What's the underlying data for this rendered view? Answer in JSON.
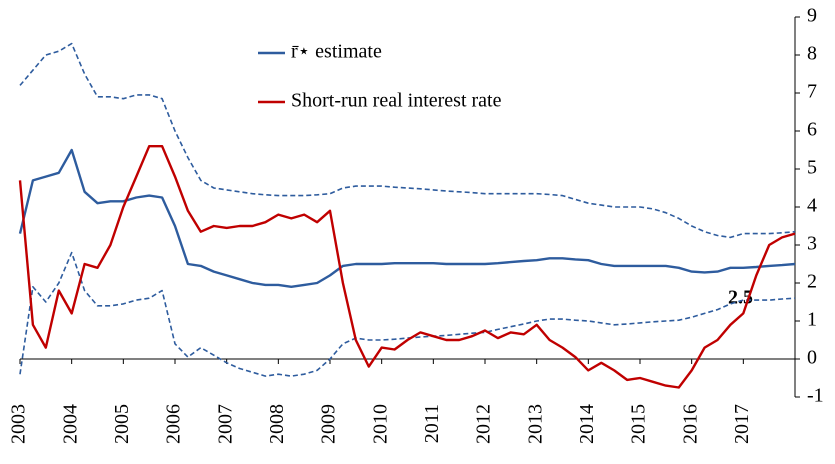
{
  "chart_data": {
    "type": "line",
    "annotations": [
      {
        "text": "2.5"
      }
    ],
    "x": [
      2003,
      2003.25,
      2003.5,
      2003.75,
      2004,
      2004.25,
      2004.5,
      2004.75,
      2005,
      2005.25,
      2005.5,
      2005.75,
      2006,
      2006.25,
      2006.5,
      2006.75,
      2007,
      2007.25,
      2007.5,
      2007.75,
      2008,
      2008.25,
      2008.5,
      2008.75,
      2009,
      2009.25,
      2009.5,
      2009.75,
      2010,
      2010.25,
      2010.5,
      2010.75,
      2011,
      2011.25,
      2011.5,
      2011.75,
      2012,
      2012.25,
      2012.5,
      2012.75,
      2013,
      2013.25,
      2013.5,
      2013.75,
      2014,
      2014.25,
      2014.5,
      2014.75,
      2015,
      2015.25,
      2015.5,
      2015.75,
      2016,
      2016.25,
      2016.5,
      2016.75,
      2017,
      2017.25,
      2017.5,
      2017.75,
      2018
    ],
    "series": [
      {
        "name": "r̄⋆ estimate",
        "color": "#2e5c9e",
        "dashed": false,
        "values": [
          3.3,
          4.7,
          4.8,
          4.9,
          5.5,
          4.4,
          4.1,
          4.15,
          4.15,
          4.25,
          4.3,
          4.25,
          3.5,
          2.5,
          2.45,
          2.3,
          2.2,
          2.1,
          2.0,
          1.95,
          1.95,
          1.9,
          1.95,
          2.0,
          2.2,
          2.45,
          2.5,
          2.5,
          2.5,
          2.52,
          2.52,
          2.52,
          2.52,
          2.5,
          2.5,
          2.5,
          2.5,
          2.52,
          2.55,
          2.58,
          2.6,
          2.65,
          2.65,
          2.62,
          2.6,
          2.5,
          2.45,
          2.45,
          2.45,
          2.45,
          2.45,
          2.4,
          2.3,
          2.28,
          2.3,
          2.4,
          2.4,
          2.42,
          2.45,
          2.47,
          2.5
        ]
      },
      {
        "color": "#2e5c9e",
        "dashed": true,
        "values": [
          7.2,
          7.6,
          8.0,
          8.1,
          8.3,
          7.5,
          6.9,
          6.9,
          6.85,
          6.95,
          6.95,
          6.85,
          6.0,
          5.3,
          4.7,
          4.5,
          4.45,
          4.4,
          4.35,
          4.32,
          4.3,
          4.3,
          4.3,
          4.32,
          4.35,
          4.5,
          4.55,
          4.55,
          4.55,
          4.52,
          4.5,
          4.48,
          4.45,
          4.42,
          4.4,
          4.38,
          4.35,
          4.35,
          4.35,
          4.35,
          4.35,
          4.33,
          4.3,
          4.2,
          4.1,
          4.05,
          4.0,
          4.0,
          4.0,
          3.95,
          3.85,
          3.7,
          3.5,
          3.35,
          3.25,
          3.2,
          3.3,
          3.3,
          3.3,
          3.32,
          3.35
        ]
      },
      {
        "color": "#2e5c9e",
        "dashed": true,
        "values": [
          -0.4,
          1.9,
          1.5,
          2.0,
          2.8,
          1.8,
          1.4,
          1.4,
          1.45,
          1.55,
          1.6,
          1.8,
          0.4,
          0.05,
          0.3,
          0.1,
          -0.1,
          -0.25,
          -0.35,
          -0.45,
          -0.4,
          -0.45,
          -0.4,
          -0.3,
          0.0,
          0.4,
          0.55,
          0.5,
          0.5,
          0.52,
          0.55,
          0.58,
          0.6,
          0.62,
          0.65,
          0.68,
          0.7,
          0.78,
          0.85,
          0.92,
          1.0,
          1.05,
          1.05,
          1.02,
          1.0,
          0.95,
          0.9,
          0.92,
          0.95,
          0.98,
          1.0,
          1.02,
          1.1,
          1.2,
          1.3,
          1.45,
          1.55,
          1.55,
          1.55,
          1.58,
          1.6
        ]
      },
      {
        "name": "Short-run real interest rate",
        "color": "#c00000",
        "dashed": false,
        "values": [
          4.7,
          0.9,
          0.3,
          1.8,
          1.2,
          2.5,
          2.4,
          3.0,
          4.0,
          4.8,
          5.6,
          5.6,
          4.8,
          3.9,
          3.35,
          3.5,
          3.45,
          3.5,
          3.5,
          3.6,
          3.8,
          3.7,
          3.8,
          3.6,
          3.9,
          2.0,
          0.5,
          -0.2,
          0.3,
          0.25,
          0.5,
          0.7,
          0.6,
          0.5,
          0.5,
          0.6,
          0.75,
          0.55,
          0.7,
          0.65,
          0.9,
          0.5,
          0.3,
          0.05,
          -0.3,
          -0.1,
          -0.3,
          -0.55,
          -0.5,
          -0.6,
          -0.7,
          -0.75,
          -0.3,
          0.3,
          0.5,
          0.9,
          1.2,
          2.2,
          3.0,
          3.2,
          3.3
        ]
      }
    ],
    "xlim": [
      2003,
      2018
    ],
    "xticks": [
      2003,
      2004,
      2005,
      2006,
      2007,
      2008,
      2009,
      2010,
      2011,
      2012,
      2013,
      2014,
      2015,
      2016,
      2017
    ],
    "ylim": [
      -1,
      9
    ],
    "yticks": [
      -1,
      0,
      1,
      2,
      3,
      4,
      5,
      6,
      7,
      8,
      9
    ],
    "y_axis_side": "right"
  }
}
